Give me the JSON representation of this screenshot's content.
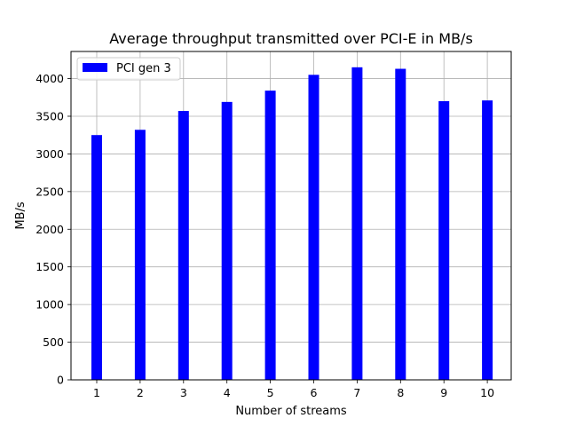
{
  "chart_data": {
    "type": "bar",
    "title": "Average throughput transmitted over PCI-E in MB/s",
    "xlabel": "Number of streams",
    "ylabel": "MB/s",
    "categories": [
      "1",
      "2",
      "3",
      "4",
      "5",
      "6",
      "7",
      "8",
      "9",
      "10"
    ],
    "series": [
      {
        "name": "PCI gen 3",
        "values": [
          3250,
          3320,
          3570,
          3690,
          3840,
          4050,
          4150,
          4130,
          3700,
          3710
        ],
        "color": "#0000ff"
      }
    ],
    "ylim": [
      0,
      4360
    ],
    "yticks": [
      0,
      500,
      1000,
      1500,
      2000,
      2500,
      3000,
      3500,
      4000
    ],
    "grid": true,
    "legend_position": "top-left"
  }
}
